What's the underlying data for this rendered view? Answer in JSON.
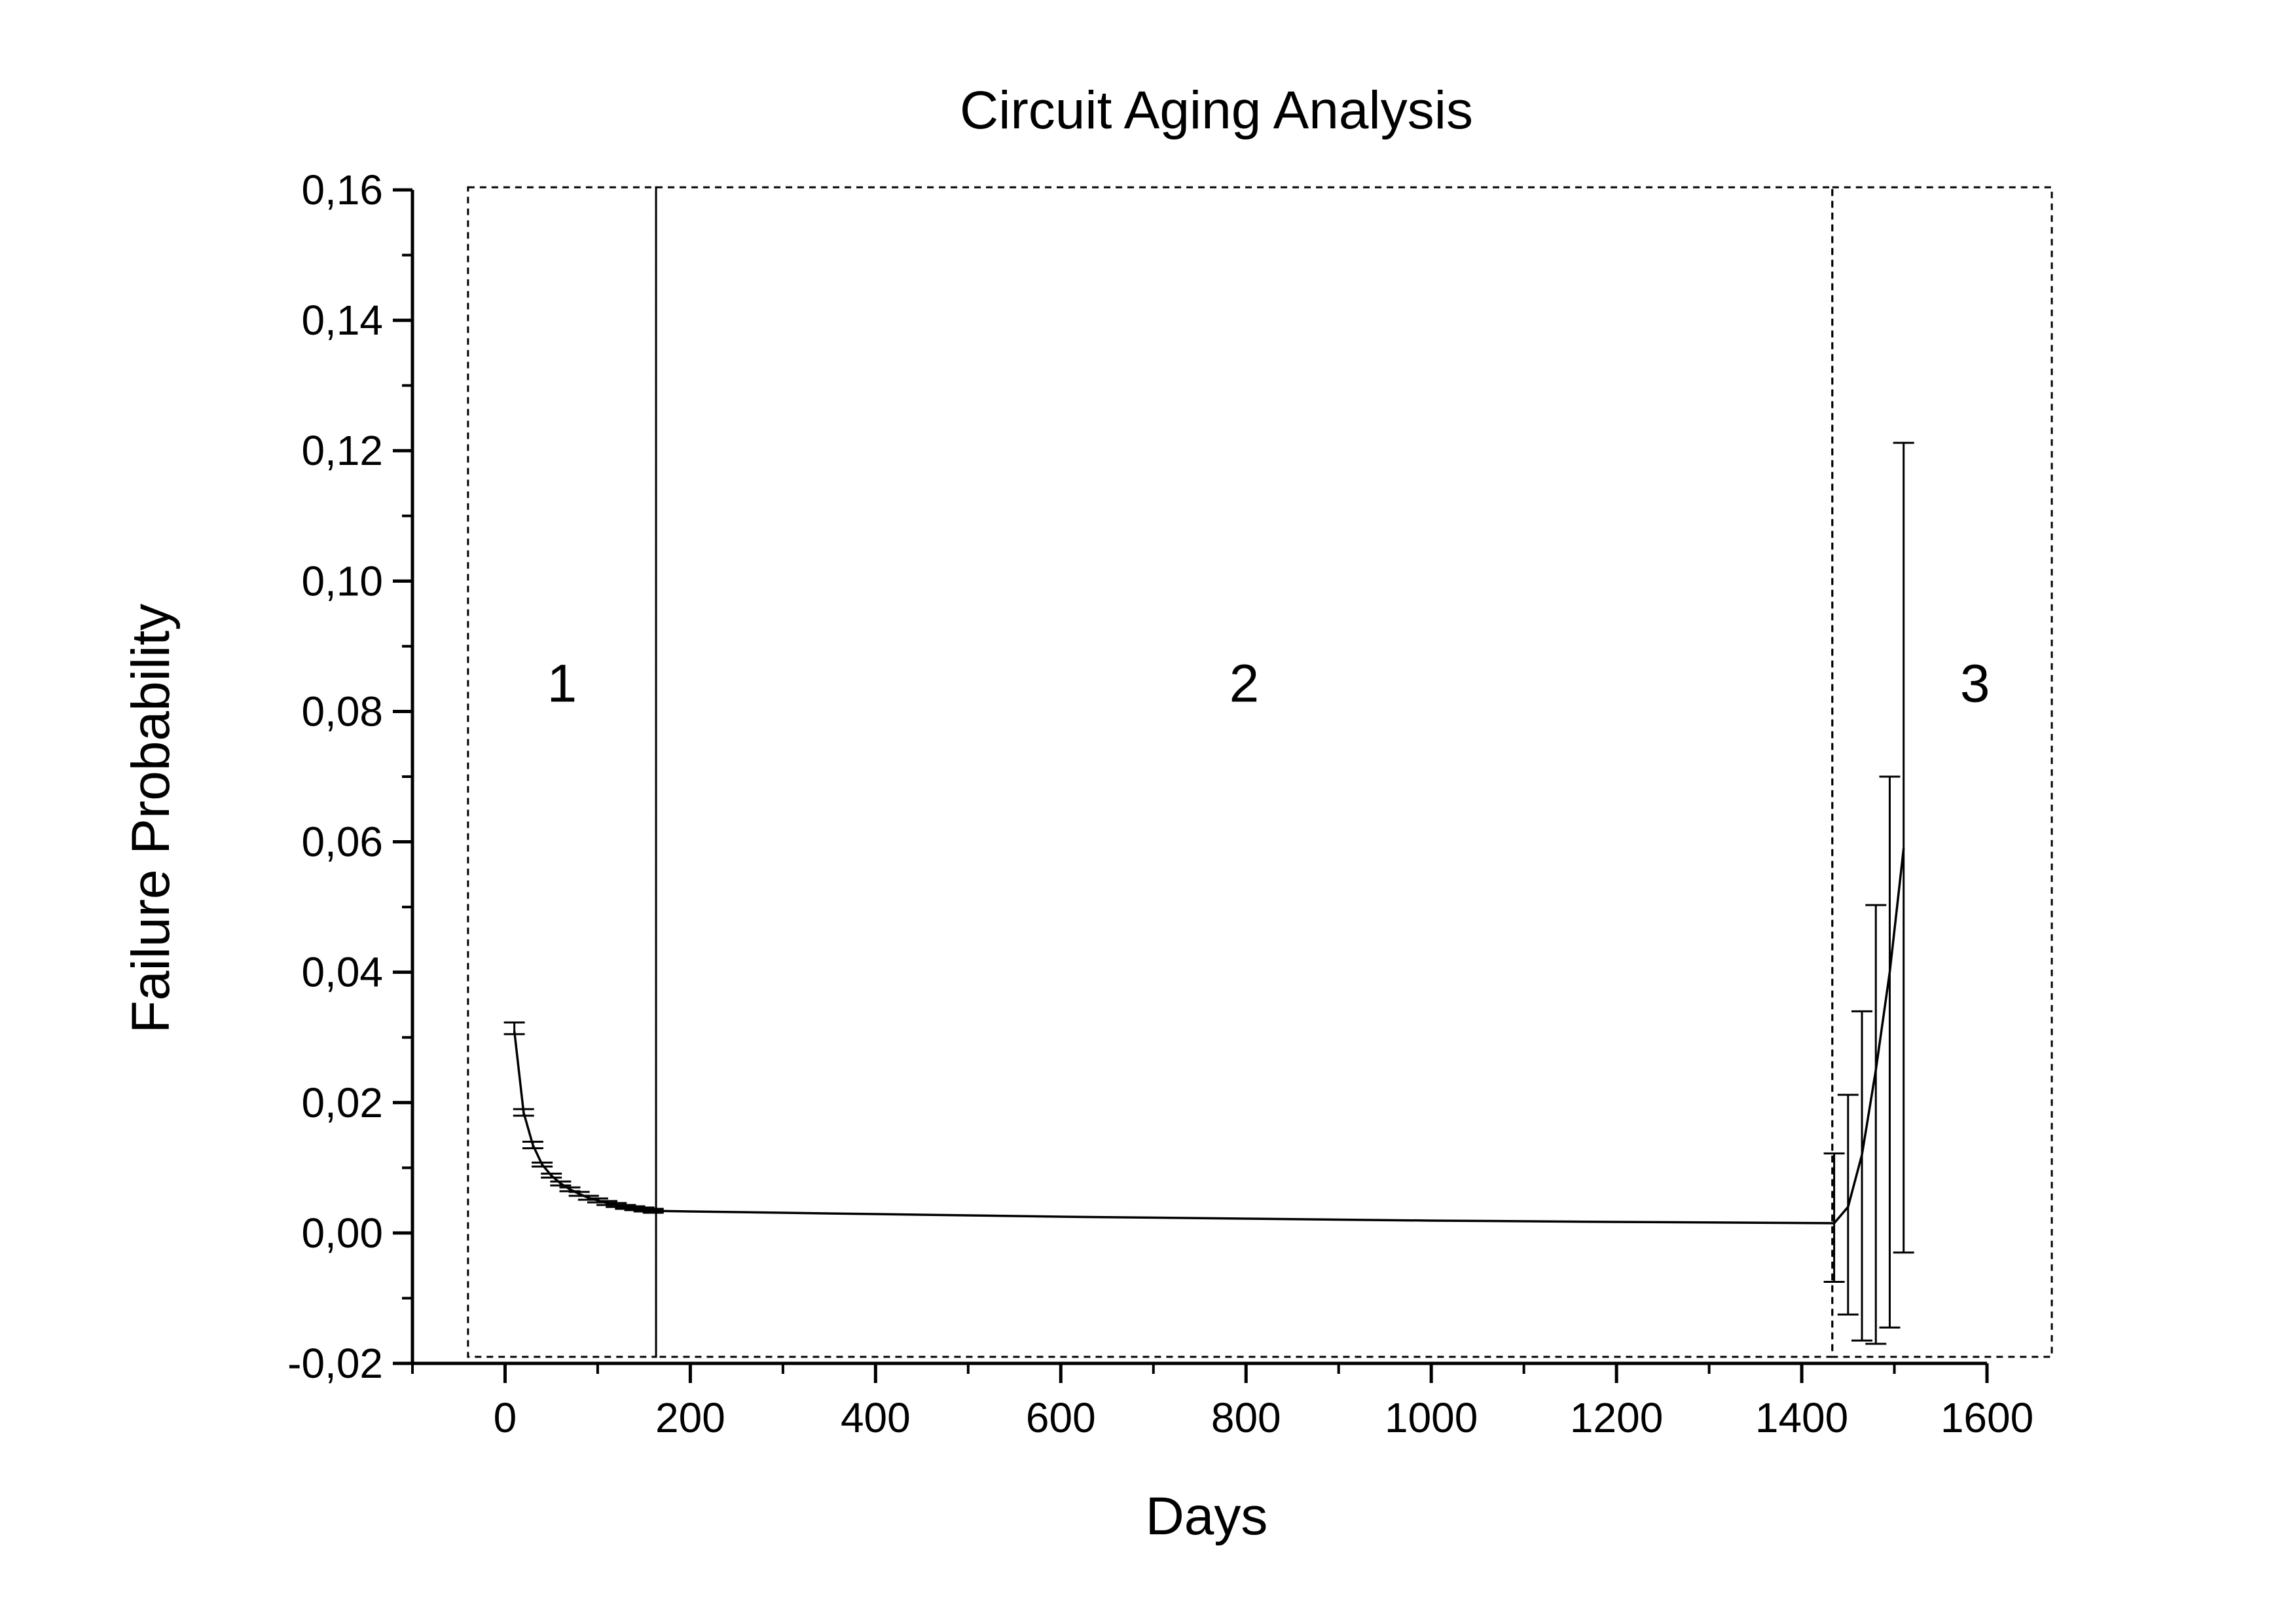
{
  "chart_data": {
    "type": "line",
    "title": "Circuit Aging Analysis",
    "xlabel": "Days",
    "ylabel": "Failure Probability",
    "xlim": [
      -100,
      1600
    ],
    "ylim": [
      -0.02,
      0.16
    ],
    "x_ticks": [
      "0",
      "200",
      "400",
      "600",
      "800",
      "1000",
      "1200",
      "1400",
      "1600"
    ],
    "x_tick_values": [
      0,
      200,
      400,
      600,
      800,
      1000,
      1200,
      1400,
      1600
    ],
    "y_ticks": [
      "-0,02",
      "0,00",
      "0,02",
      "0,04",
      "0,06",
      "0,08",
      "0,10",
      "0,12",
      "0,14",
      "0,16"
    ],
    "y_tick_values": [
      -0.02,
      0,
      0.02,
      0.04,
      0.06,
      0.08,
      0.1,
      0.12,
      0.14,
      0.16
    ],
    "grid": false,
    "series": [
      {
        "curve_x": [
          10,
          20,
          30,
          40,
          50,
          60,
          70,
          80,
          90,
          100,
          110,
          120,
          130,
          140,
          150,
          160,
          200,
          300,
          400,
          600,
          800,
          1000,
          1200,
          1435,
          1450,
          1465,
          1480,
          1495,
          1510
        ],
        "curve_y": [
          0.031,
          0.0185,
          0.0135,
          0.0105,
          0.0088,
          0.0076,
          0.0067,
          0.006,
          0.0054,
          0.005,
          0.0046,
          0.0043,
          0.004,
          0.0038,
          0.0036,
          0.0034,
          0.0033,
          0.0031,
          0.0029,
          0.0025,
          0.0022,
          0.0019,
          0.0017,
          0.0015,
          0.004,
          0.012,
          0.025,
          0.04,
          0.059
        ],
        "error_x": [
          10,
          20,
          30,
          40,
          50,
          60,
          70,
          80,
          90,
          100,
          110,
          120,
          130,
          140,
          150,
          160,
          1435,
          1450,
          1465,
          1480,
          1495,
          1510
        ],
        "error_y": [
          0.031,
          0.0185,
          0.0135,
          0.0105,
          0.0088,
          0.0076,
          0.0067,
          0.006,
          0.0054,
          0.005,
          0.0046,
          0.0043,
          0.004,
          0.0038,
          0.0036,
          0.0034,
          0.0025,
          0.0045,
          0.0085,
          0.027,
          0.044,
          0.059
        ],
        "error_low": [
          0.0305,
          0.018,
          0.013,
          0.0102,
          0.0085,
          0.0073,
          0.0064,
          0.0057,
          0.0051,
          0.0047,
          0.0043,
          0.004,
          0.0037,
          0.0035,
          0.0033,
          0.0031,
          -0.0075,
          -0.0125,
          -0.0165,
          -0.017,
          -0.0145,
          -0.003
        ],
        "error_high": [
          0.0323,
          0.019,
          0.014,
          0.0108,
          0.0091,
          0.0079,
          0.007,
          0.0063,
          0.0057,
          0.0053,
          0.0049,
          0.0046,
          0.0043,
          0.0041,
          0.0039,
          0.0037,
          0.0122,
          0.0212,
          0.034,
          0.0503,
          0.07,
          0.1212
        ]
      }
    ],
    "regions": [
      {
        "label": "1",
        "x_from": -40,
        "x_to": 163
      },
      {
        "label": "2",
        "x_from": 163,
        "x_to": 1433
      },
      {
        "label": "3",
        "x_from": 1433,
        "x_to": 1670
      }
    ],
    "region_y_range": [
      -0.019,
      0.1604
    ],
    "region_label_y": 0.0845
  }
}
